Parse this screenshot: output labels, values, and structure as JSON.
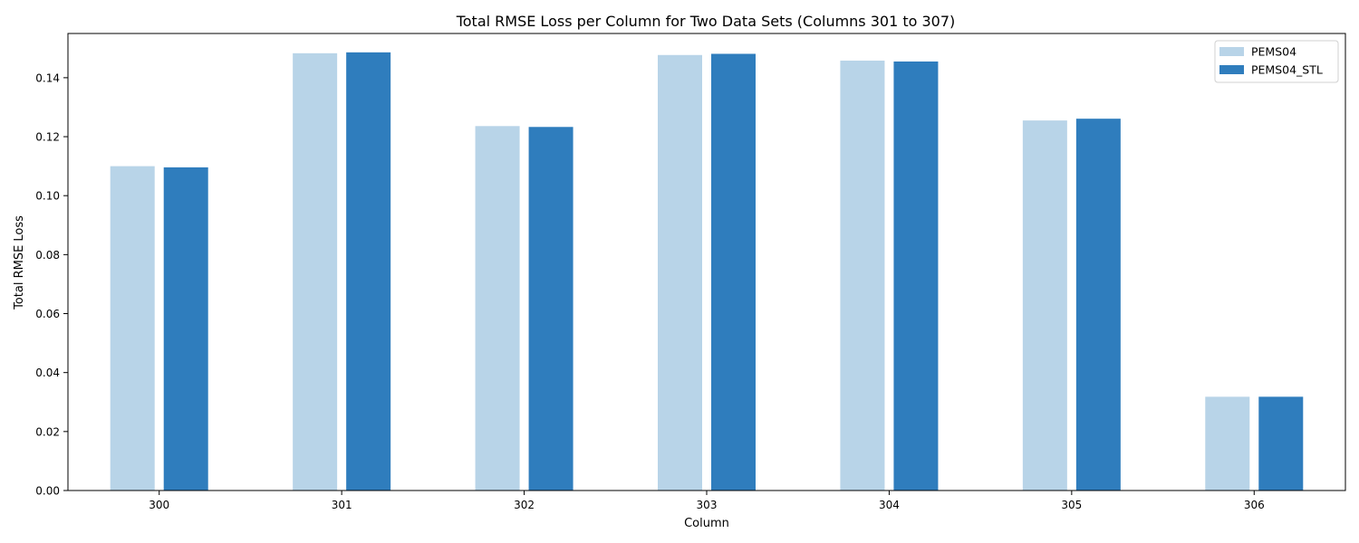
{
  "chart_data": {
    "type": "bar",
    "title": "Total RMSE Loss per Column for Two Data Sets (Columns 301 to 307)",
    "xlabel": "Column",
    "ylabel": "Total RMSE Loss",
    "categories": [
      "300",
      "301",
      "302",
      "303",
      "304",
      "305",
      "306"
    ],
    "series": [
      {
        "name": "PEMS04",
        "color": "#b8d4e8",
        "values": [
          0.11,
          0.1483,
          0.1236,
          0.1477,
          0.1458,
          0.1255,
          0.0318
        ]
      },
      {
        "name": "PEMS04_STL",
        "color": "#2f7dbd",
        "values": [
          0.1096,
          0.1486,
          0.1233,
          0.1481,
          0.1455,
          0.1261,
          0.0318
        ]
      }
    ],
    "ylim": [
      0,
      0.155
    ],
    "yticks": [
      0.0,
      0.02,
      0.04,
      0.06,
      0.08,
      0.1,
      0.12,
      0.14
    ],
    "ytick_labels": [
      "0.00",
      "0.02",
      "0.04",
      "0.06",
      "0.08",
      "0.10",
      "0.12",
      "0.14"
    ],
    "grid": false,
    "legend_position": "top-right"
  }
}
